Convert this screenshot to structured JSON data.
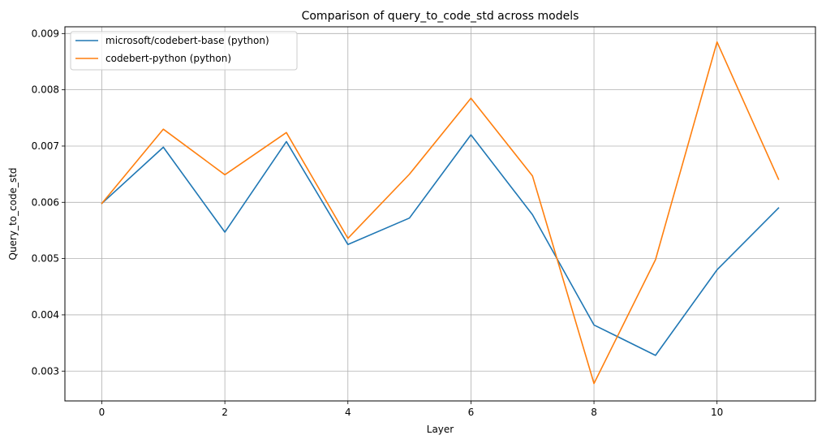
{
  "chart_data": {
    "type": "line",
    "title": "Comparison of query_to_code_std across models",
    "xlabel": "Layer",
    "ylabel": "Query_to_code_std",
    "xlim": [
      -0.6,
      11.6
    ],
    "ylim": [
      0.00247,
      0.00912
    ],
    "grid": true,
    "legend_position": "top-left",
    "x": [
      0,
      1,
      2,
      3,
      4,
      5,
      6,
      7,
      8,
      9,
      10,
      11
    ],
    "xticks": [
      0,
      2,
      4,
      6,
      8,
      10
    ],
    "xtick_labels": [
      "0",
      "2",
      "4",
      "6",
      "8",
      "10"
    ],
    "yticks": [
      0.003,
      0.004,
      0.005,
      0.006,
      0.007,
      0.008,
      0.009
    ],
    "ytick_labels": [
      "0.003",
      "0.004",
      "0.005",
      "0.006",
      "0.007",
      "0.008",
      "0.009"
    ],
    "series": [
      {
        "name": "microsoft/codebert-base (python)",
        "color": "#1f77b4",
        "values": [
          0.00598,
          0.00698,
          0.00547,
          0.00708,
          0.00525,
          0.00572,
          0.0072,
          0.00578,
          0.00382,
          0.00328,
          0.0048,
          0.0059
        ]
      },
      {
        "name": "codebert-python (python)",
        "color": "#ff7f0e",
        "values": [
          0.00598,
          0.0073,
          0.00649,
          0.00724,
          0.00536,
          0.0065,
          0.00785,
          0.00647,
          0.00278,
          0.00498,
          0.00885,
          0.00641
        ]
      }
    ]
  }
}
